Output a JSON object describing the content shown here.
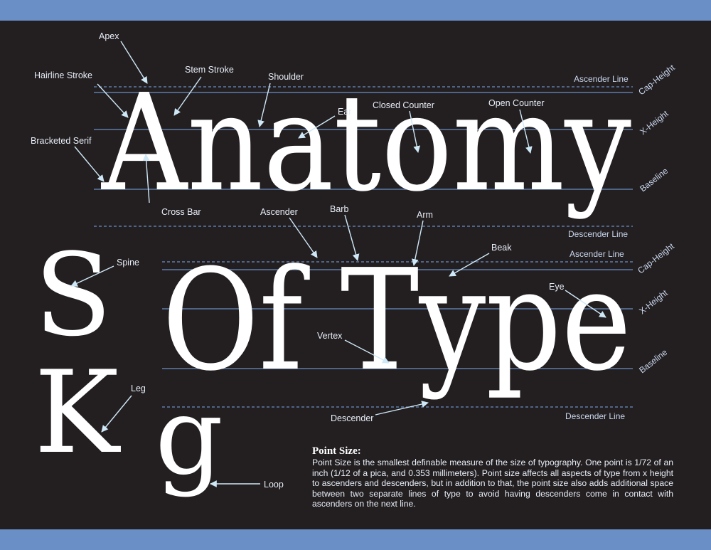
{
  "theme": {
    "band_color": "#6a8fc7",
    "panel_color": "#231f20",
    "guide_line_color": "#6a8fc7",
    "leader_color": "#cfe8f7",
    "text_color": "#ffffff"
  },
  "headline": {
    "line1": "Anatomy",
    "line2": "Of Type"
  },
  "specimens": [
    "S",
    "K",
    "g"
  ],
  "guide_lines": {
    "upper": [
      "Ascender Line",
      "Cap-Height",
      "X-Height",
      "Baseline",
      "Descender Line"
    ],
    "lower": [
      "Ascender Line",
      "Cap-Height",
      "X-Height",
      "Baseline",
      "Descender Line"
    ]
  },
  "labels": {
    "apex": "Apex",
    "hairline_stroke": "Hairline Stroke",
    "stem_stroke": "Stem Stroke",
    "shoulder": "Shoulder",
    "ear": "Ear",
    "closed_counter": "Closed Counter",
    "open_counter": "Open Counter",
    "bracketed_serif": "Bracketed Serif",
    "cross_bar": "Cross Bar",
    "ascender": "Ascender",
    "barb": "Barb",
    "arm": "Arm",
    "beak": "Beak",
    "spine": "Spine",
    "eye": "Eye",
    "vertex": "Vertex",
    "leg": "Leg",
    "descender": "Descender",
    "loop": "Loop"
  },
  "note": {
    "title": "Point Size:",
    "body": "Point Size is the smallest definable measure of the size of typography. One point is 1/72 of an inch (1/12 of a pica, and 0.353 millimeters). Point size affects all aspects of type from x height to ascenders and descenders, but in addition to that, the point size also adds additional space between two separate lines of type to avoid having descenders come in contact with ascenders on the next line."
  }
}
